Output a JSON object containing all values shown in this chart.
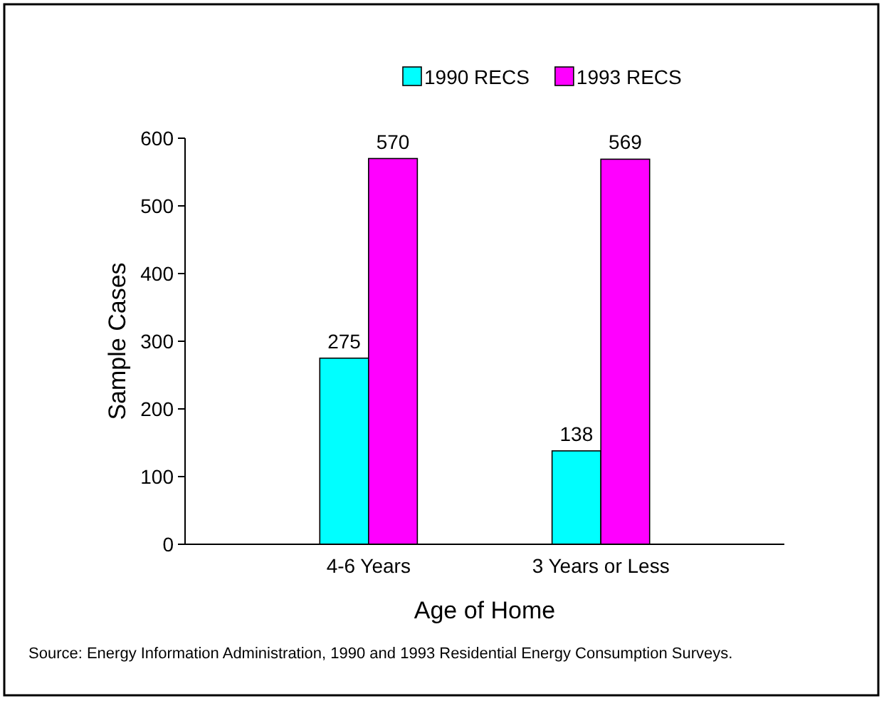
{
  "chart_data": {
    "type": "bar",
    "xlabel": "Age of Home",
    "ylabel": "Sample Cases",
    "categories": [
      "4-6 Years",
      "3 Years or Less"
    ],
    "series": [
      {
        "name": "1990 RECS",
        "color": "#00ffff",
        "values": [
          275,
          138
        ]
      },
      {
        "name": "1993 RECS",
        "color": "#ff00ff",
        "values": [
          570,
          569
        ]
      }
    ],
    "ylim": [
      0,
      600
    ],
    "yticks": [
      0,
      100,
      200,
      300,
      400,
      500,
      600
    ],
    "grid": false,
    "legend": "top",
    "data_labels": true,
    "annotations": [
      "Source:  Energy Information Administration, 1990 and 1993 Residential Energy Consumption Surveys."
    ]
  }
}
